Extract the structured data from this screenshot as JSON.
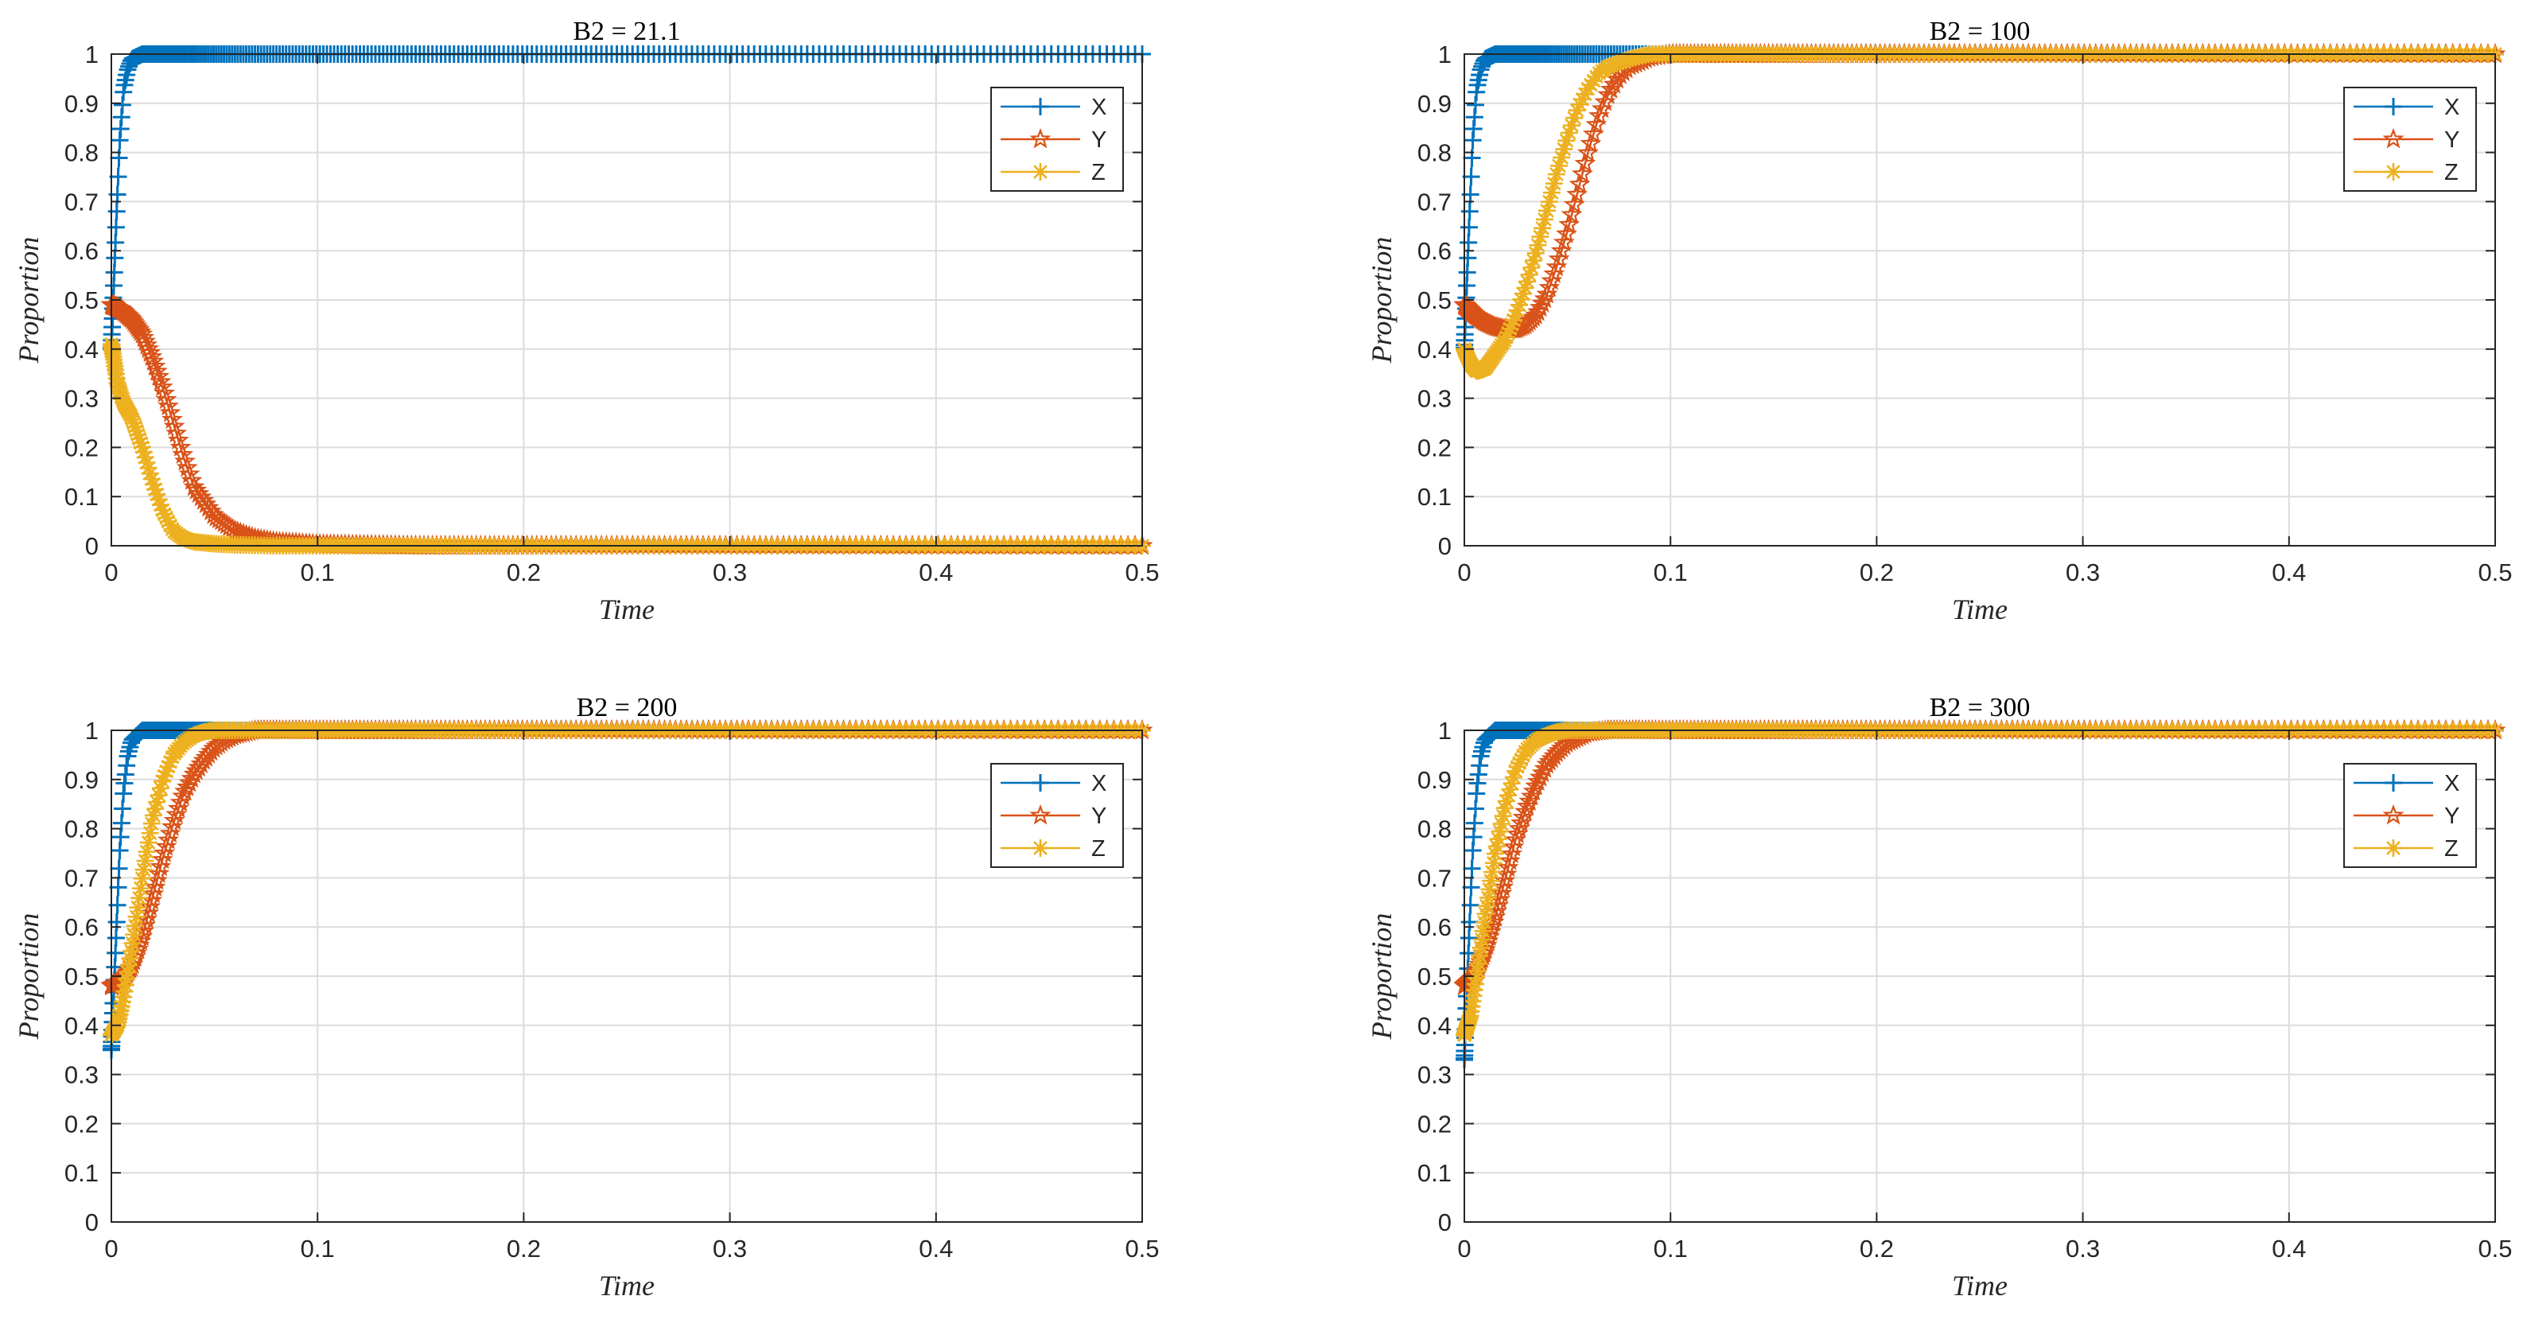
{
  "colors": {
    "X": "#0072BD",
    "Y": "#D95319",
    "Z": "#EDB120",
    "grid": "#dcdcdc",
    "axis": "#262626"
  },
  "chart_data": [
    {
      "type": "line",
      "title": "B2 = 21.1",
      "xlabel": "Time",
      "ylabel": "Proportion",
      "xlim": [
        0,
        0.5
      ],
      "ylim": [
        0,
        1
      ],
      "xticks": [
        "0",
        "0.1",
        "0.2",
        "0.3",
        "0.4",
        "0.5"
      ],
      "yticks": [
        "0",
        "0.1",
        "0.2",
        "0.3",
        "0.4",
        "0.5",
        "0.6",
        "0.7",
        "0.8",
        "0.9",
        "1"
      ],
      "grid": true,
      "legend": "top-right",
      "series": [
        {
          "name": "X",
          "marker": "plus",
          "x": [
            0,
            0.002,
            0.004,
            0.006,
            0.008,
            0.01,
            0.015,
            0.02,
            0.5
          ],
          "y": [
            0.4,
            0.62,
            0.82,
            0.93,
            0.97,
            0.99,
            1.0,
            1.0,
            1.0
          ]
        },
        {
          "name": "Y",
          "marker": "star",
          "x": [
            0,
            0.005,
            0.01,
            0.015,
            0.02,
            0.025,
            0.03,
            0.035,
            0.04,
            0.05,
            0.06,
            0.07,
            0.08,
            0.1,
            0.15,
            0.5
          ],
          "y": [
            0.49,
            0.48,
            0.46,
            0.43,
            0.38,
            0.32,
            0.25,
            0.18,
            0.12,
            0.06,
            0.03,
            0.015,
            0.008,
            0.003,
            0.0,
            0.0
          ]
        },
        {
          "name": "Z",
          "marker": "asterisk",
          "x": [
            0,
            0.003,
            0.006,
            0.01,
            0.015,
            0.02,
            0.025,
            0.03,
            0.035,
            0.04,
            0.05,
            0.06,
            0.08,
            0.5
          ],
          "y": [
            0.41,
            0.33,
            0.29,
            0.26,
            0.2,
            0.13,
            0.07,
            0.03,
            0.015,
            0.008,
            0.004,
            0.002,
            0.0,
            0.0
          ]
        }
      ]
    },
    {
      "type": "line",
      "title": "B2 = 100",
      "xlabel": "Time",
      "ylabel": "Proportion",
      "xlim": [
        0,
        0.5
      ],
      "ylim": [
        0,
        1
      ],
      "xticks": [
        "0",
        "0.1",
        "0.2",
        "0.3",
        "0.4",
        "0.5"
      ],
      "yticks": [
        "0",
        "0.1",
        "0.2",
        "0.3",
        "0.4",
        "0.5",
        "0.6",
        "0.7",
        "0.8",
        "0.9",
        "1"
      ],
      "grid": true,
      "legend": "top-right",
      "series": [
        {
          "name": "X",
          "marker": "plus",
          "x": [
            0,
            0.002,
            0.004,
            0.006,
            0.008,
            0.01,
            0.015,
            0.02,
            0.5
          ],
          "y": [
            0.4,
            0.62,
            0.82,
            0.93,
            0.97,
            0.99,
            1.0,
            1.0,
            1.0
          ]
        },
        {
          "name": "Y",
          "marker": "star",
          "x": [
            0,
            0.005,
            0.01,
            0.015,
            0.02,
            0.025,
            0.03,
            0.035,
            0.04,
            0.045,
            0.05,
            0.055,
            0.06,
            0.065,
            0.07,
            0.075,
            0.08,
            0.09,
            0.1,
            0.5
          ],
          "y": [
            0.49,
            0.47,
            0.455,
            0.445,
            0.44,
            0.44,
            0.45,
            0.47,
            0.51,
            0.57,
            0.64,
            0.72,
            0.8,
            0.87,
            0.92,
            0.955,
            0.975,
            0.993,
            1.0,
            1.0
          ]
        },
        {
          "name": "Z",
          "marker": "asterisk",
          "x": [
            0,
            0.003,
            0.006,
            0.01,
            0.015,
            0.02,
            0.025,
            0.03,
            0.035,
            0.04,
            0.045,
            0.05,
            0.055,
            0.06,
            0.065,
            0.07,
            0.08,
            0.09,
            0.5
          ],
          "y": [
            0.4,
            0.37,
            0.355,
            0.36,
            0.39,
            0.42,
            0.47,
            0.53,
            0.6,
            0.68,
            0.76,
            0.83,
            0.89,
            0.93,
            0.96,
            0.975,
            0.99,
            1.0,
            1.0
          ]
        }
      ]
    },
    {
      "type": "line",
      "title": "B2 = 200",
      "xlabel": "Time",
      "ylabel": "Proportion",
      "xlim": [
        0,
        0.5
      ],
      "ylim": [
        0,
        1
      ],
      "xticks": [
        "0",
        "0.1",
        "0.2",
        "0.3",
        "0.4",
        "0.5"
      ],
      "yticks": [
        "0",
        "0.1",
        "0.2",
        "0.3",
        "0.4",
        "0.5",
        "0.6",
        "0.7",
        "0.8",
        "0.9",
        "1"
      ],
      "grid": true,
      "legend": "top-right",
      "series": [
        {
          "name": "X",
          "marker": "plus",
          "x": [
            0,
            0.002,
            0.004,
            0.006,
            0.008,
            0.01,
            0.015,
            0.02,
            0.5
          ],
          "y": [
            0.35,
            0.55,
            0.75,
            0.88,
            0.95,
            0.98,
            1.0,
            1.0,
            1.0
          ]
        },
        {
          "name": "Y",
          "marker": "star",
          "x": [
            0,
            0.005,
            0.01,
            0.015,
            0.02,
            0.025,
            0.03,
            0.035,
            0.04,
            0.045,
            0.05,
            0.055,
            0.06,
            0.07,
            0.5
          ],
          "y": [
            0.48,
            0.49,
            0.52,
            0.58,
            0.66,
            0.74,
            0.81,
            0.87,
            0.91,
            0.94,
            0.965,
            0.98,
            0.99,
            1.0,
            1.0
          ]
        },
        {
          "name": "Z",
          "marker": "asterisk",
          "x": [
            0,
            0.003,
            0.006,
            0.01,
            0.015,
            0.02,
            0.025,
            0.03,
            0.035,
            0.04,
            0.045,
            0.05,
            0.5
          ],
          "y": [
            0.38,
            0.4,
            0.46,
            0.56,
            0.7,
            0.82,
            0.9,
            0.95,
            0.975,
            0.99,
            0.997,
            1.0,
            1.0
          ]
        }
      ]
    },
    {
      "type": "line",
      "title": "B2 = 300",
      "xlabel": "Time",
      "ylabel": "Proportion",
      "xlim": [
        0,
        0.5
      ],
      "ylim": [
        0,
        1
      ],
      "xticks": [
        "0",
        "0.1",
        "0.2",
        "0.3",
        "0.4",
        "0.5"
      ],
      "yticks": [
        "0",
        "0.1",
        "0.2",
        "0.3",
        "0.4",
        "0.5",
        "0.6",
        "0.7",
        "0.8",
        "0.9",
        "1"
      ],
      "grid": true,
      "legend": "top-right",
      "series": [
        {
          "name": "X",
          "marker": "plus",
          "x": [
            0,
            0.002,
            0.004,
            0.006,
            0.008,
            0.01,
            0.015,
            0.02,
            0.5
          ],
          "y": [
            0.33,
            0.55,
            0.75,
            0.88,
            0.95,
            0.98,
            1.0,
            1.0,
            1.0
          ]
        },
        {
          "name": "Y",
          "marker": "star",
          "x": [
            0,
            0.005,
            0.01,
            0.015,
            0.02,
            0.025,
            0.03,
            0.035,
            0.04,
            0.045,
            0.05,
            0.055,
            0.06,
            0.07,
            0.5
          ],
          "y": [
            0.48,
            0.5,
            0.55,
            0.62,
            0.7,
            0.78,
            0.84,
            0.89,
            0.93,
            0.955,
            0.975,
            0.985,
            0.995,
            1.0,
            1.0
          ]
        },
        {
          "name": "Z",
          "marker": "asterisk",
          "x": [
            0,
            0.003,
            0.006,
            0.01,
            0.015,
            0.02,
            0.025,
            0.03,
            0.035,
            0.04,
            0.045,
            0.05,
            0.5
          ],
          "y": [
            0.38,
            0.42,
            0.5,
            0.62,
            0.75,
            0.85,
            0.92,
            0.96,
            0.98,
            0.99,
            0.997,
            1.0,
            1.0
          ]
        }
      ]
    }
  ]
}
